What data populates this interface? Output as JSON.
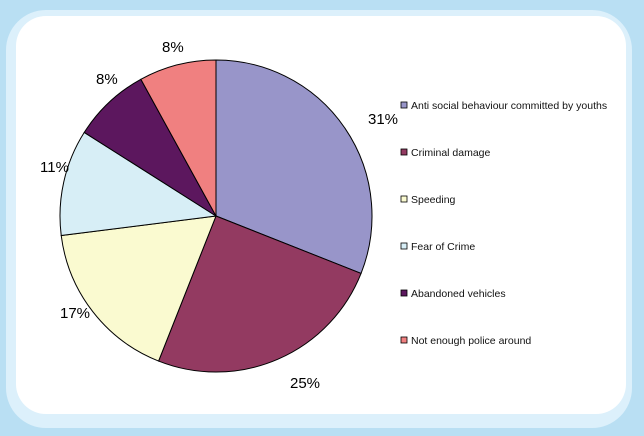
{
  "chart_data": {
    "type": "pie",
    "title": "",
    "slices": [
      {
        "label": "Anti social behaviour committed by youths",
        "value": 31,
        "pct_label": "31%",
        "color": "#9895c9"
      },
      {
        "label": "Criminal damage",
        "value": 25,
        "pct_label": "25%",
        "color": "#933a61"
      },
      {
        "label": "Speeding",
        "value": 17,
        "pct_label": "17%",
        "color": "#fafad0"
      },
      {
        "label": "Fear of Crime",
        "value": 11,
        "pct_label": "11%",
        "color": "#d7eef6"
      },
      {
        "label": "Abandoned vehicles",
        "value": 8,
        "pct_label": "8%",
        "color": "#5c175e"
      },
      {
        "label": "Not enough police around",
        "value": 8,
        "pct_label": "8%",
        "color": "#f08080"
      }
    ],
    "legend_position": "right"
  }
}
